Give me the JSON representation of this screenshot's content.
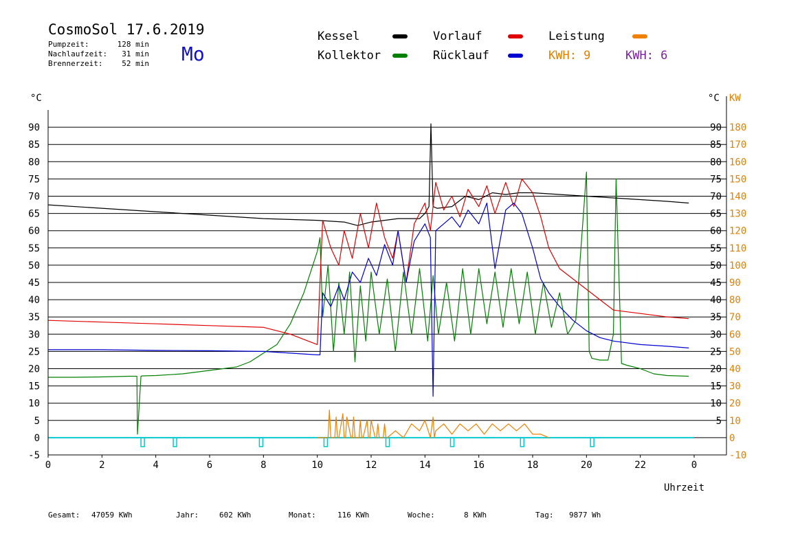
{
  "header": {
    "title": "CosmoSol 17.6.2019",
    "weekday": "Mo",
    "stats": [
      {
        "label": "Pumpzeit:",
        "value": "128 min"
      },
      {
        "label": "Nachlaufzeit:",
        "value": "31 min"
      },
      {
        "label": "Brennerzeit:",
        "value": "52 min"
      }
    ]
  },
  "legend": {
    "items": [
      {
        "label": "Kessel",
        "color": "#000000"
      },
      {
        "label": "Vorlauf",
        "color": "#e00000"
      },
      {
        "label": "Leistung",
        "color": "#f08000"
      },
      {
        "label": "Kollektor",
        "color": "#008000"
      },
      {
        "label": "Rücklauf",
        "color": "#0000d0"
      }
    ],
    "kwh": [
      {
        "text": "KWH: 9",
        "color": "#e08000"
      },
      {
        "text": "KWH: 6",
        "color": "#7a1fa0"
      }
    ]
  },
  "axes": {
    "left_unit": "°C",
    "right_unit": "°C",
    "right2_unit": "KW",
    "xlabel": "Uhrzeit"
  },
  "footer": [
    {
      "label": "Gesamt:",
      "value": "47059 KWh"
    },
    {
      "label": "Jahr:",
      "value": "602 KWh"
    },
    {
      "label": "Monat:",
      "value": "116 KWh"
    },
    {
      "label": "Woche:",
      "value": "8 KWh"
    },
    {
      "label": "Tag:",
      "value": "9877 Wh"
    }
  ],
  "chart_data": {
    "type": "line",
    "xlim": [
      0,
      24
    ],
    "ylim": [
      -5,
      95
    ],
    "y2lim": [
      -10,
      190
    ],
    "x_ticks": [
      "0",
      "2",
      "4",
      "6",
      "8",
      "10",
      "12",
      "14",
      "16",
      "18",
      "20",
      "22",
      "0"
    ],
    "y_ticks": [
      "-5",
      "0",
      "5",
      "10",
      "15",
      "20",
      "25",
      "30",
      "35",
      "40",
      "45",
      "50",
      "55",
      "60",
      "65",
      "70",
      "75",
      "80",
      "85",
      "90"
    ],
    "y_ticks_right": [
      "5",
      "10",
      "15",
      "20",
      "25",
      "30",
      "35",
      "40",
      "45",
      "50",
      "55",
      "60",
      "65",
      "70",
      "75",
      "80",
      "85",
      "90"
    ],
    "y2_ticks": [
      "-10",
      "0",
      "10",
      "20",
      "30",
      "40",
      "50",
      "60",
      "70",
      "80",
      "90",
      "100",
      "110",
      "120",
      "130",
      "140",
      "150",
      "160",
      "170",
      "180"
    ],
    "grid": "horizontal",
    "series": [
      {
        "name": "Kessel",
        "color": "#000000",
        "x": [
          0,
          2,
          4,
          6,
          8,
          10,
          11,
          11.5,
          12,
          13,
          13.8,
          14,
          14.15,
          14.22,
          14.3,
          14.45,
          15,
          15.5,
          16,
          16.5,
          17,
          17.5,
          18,
          19,
          20,
          21,
          22,
          23,
          23.8
        ],
        "y": [
          67.5,
          66.5,
          65.5,
          64.5,
          63.5,
          63,
          62.5,
          61.5,
          62.5,
          63.5,
          63.5,
          65,
          67,
          91,
          67,
          66.5,
          67,
          70,
          69,
          71,
          70.5,
          71,
          71,
          70.5,
          70,
          69.5,
          69,
          68.5,
          68
        ]
      },
      {
        "name": "Vorlauf",
        "color": "#e00000",
        "x": [
          0,
          2,
          4,
          6,
          8,
          9,
          10,
          10.2,
          10.5,
          10.8,
          11,
          11.3,
          11.6,
          11.9,
          12.2,
          12.5,
          12.8,
          13,
          13.3,
          13.6,
          14,
          14.2,
          14.4,
          14.7,
          15,
          15.3,
          15.6,
          16,
          16.3,
          16.6,
          17,
          17.3,
          17.6,
          18,
          18.3,
          18.6,
          19,
          19.5,
          20,
          20.5,
          21,
          22,
          23,
          23.8
        ],
        "y": [
          34,
          33.5,
          33,
          32.5,
          32,
          30,
          27,
          63,
          55,
          50,
          60,
          52,
          65,
          55,
          68,
          58,
          52,
          60,
          45,
          62,
          68,
          60,
          74,
          66,
          70,
          64,
          72,
          67,
          73,
          65,
          74,
          67,
          75,
          71,
          64,
          55,
          49,
          46,
          43,
          40,
          37,
          36,
          35,
          34.5
        ]
      },
      {
        "name": "Rücklauf",
        "color": "#0000d0",
        "x": [
          0,
          2,
          4,
          6,
          8,
          9,
          10,
          10.1,
          10.2,
          10.5,
          10.8,
          11,
          11.3,
          11.6,
          11.9,
          12.2,
          12.5,
          12.8,
          13,
          13.3,
          13.6,
          14,
          14.2,
          14.3,
          14.4,
          14.7,
          15,
          15.3,
          15.6,
          16,
          16.3,
          16.6,
          17,
          17.3,
          17.6,
          18,
          18.3,
          18.6,
          19,
          19.5,
          20,
          20.5,
          21,
          22,
          23,
          23.8
        ],
        "y": [
          25.5,
          25.5,
          25.3,
          25.2,
          25,
          24.5,
          24,
          24,
          42,
          38,
          44,
          40,
          48,
          45,
          52,
          47,
          56,
          50,
          60,
          45,
          57,
          62,
          58,
          12,
          60,
          62,
          64,
          61,
          66,
          62,
          68,
          49,
          66,
          68,
          65,
          55,
          46,
          42,
          38,
          34,
          31,
          29,
          28,
          27,
          26.5,
          26
        ]
      },
      {
        "name": "Kollektor",
        "color": "#008000",
        "x": [
          0,
          1,
          2,
          3,
          3.3,
          3.32,
          3.45,
          3.5,
          4,
          5,
          6,
          7,
          7.5,
          8,
          8.5,
          9,
          9.5,
          10,
          10.1,
          10.2,
          10.4,
          10.6,
          10.8,
          11,
          11.2,
          11.4,
          11.6,
          11.8,
          12,
          12.3,
          12.6,
          12.9,
          13.2,
          13.5,
          13.8,
          14.1,
          14.3,
          14.5,
          14.8,
          15.1,
          15.4,
          15.7,
          16,
          16.3,
          16.6,
          16.9,
          17.2,
          17.5,
          17.8,
          18.1,
          18.4,
          18.7,
          19,
          19.3,
          19.6,
          20,
          20.1,
          20.2,
          20.5,
          20.8,
          21,
          21.1,
          21.3,
          21.5,
          22,
          22.5,
          23,
          23.8
        ],
        "y": [
          17.5,
          17.5,
          17.6,
          17.8,
          17.8,
          1,
          17.8,
          17.9,
          18,
          18.5,
          19.5,
          20.5,
          22,
          24.5,
          27,
          33,
          42,
          54,
          58,
          35,
          50,
          25,
          45,
          30,
          48,
          22,
          44,
          28,
          48,
          30,
          46,
          25,
          48,
          30,
          49,
          28,
          47,
          30,
          45,
          28,
          49,
          30,
          49,
          33,
          48,
          32,
          49,
          33,
          48,
          30,
          45,
          32,
          42,
          30,
          34,
          77,
          25,
          23,
          22.5,
          22.5,
          30,
          75,
          21.5,
          21,
          20,
          18.5,
          18,
          17.8
        ]
      },
      {
        "name": "Leistung",
        "color": "#f08000",
        "x": [
          10,
          10.3,
          10.4,
          10.45,
          10.5,
          10.65,
          10.7,
          10.75,
          10.8,
          10.95,
          11,
          11.05,
          11.1,
          11.25,
          11.3,
          11.35,
          11.4,
          11.55,
          11.6,
          11.65,
          11.7,
          11.85,
          11.9,
          11.95,
          12,
          12.15,
          12.2,
          12.25,
          12.3,
          12.45,
          12.5,
          12.55,
          12.6,
          12.9,
          13.2,
          13.5,
          13.8,
          14,
          14.2,
          14.3,
          14.35,
          14.4,
          14.7,
          15,
          15.3,
          15.6,
          15.9,
          16.2,
          16.5,
          16.8,
          17.1,
          17.4,
          17.7,
          18,
          18.3,
          18.6
        ],
        "y": [
          0,
          0,
          0,
          8,
          0,
          0,
          6,
          0,
          0,
          7,
          0,
          0,
          6,
          0,
          0,
          6,
          0,
          0,
          5,
          0,
          0,
          5,
          0,
          0,
          5,
          0,
          0,
          4,
          0,
          0,
          4,
          0,
          0,
          2,
          0,
          4,
          2,
          5,
          0,
          6,
          0,
          2,
          4,
          1,
          4,
          2,
          4,
          1,
          4,
          2,
          4,
          2,
          4,
          1,
          1,
          0
        ]
      }
    ],
    "markers": {
      "color": "#00c8d0",
      "x": [
        3.5,
        4.7,
        7.9,
        10.3,
        12.6,
        15.0,
        17.6,
        20.2
      ]
    }
  }
}
